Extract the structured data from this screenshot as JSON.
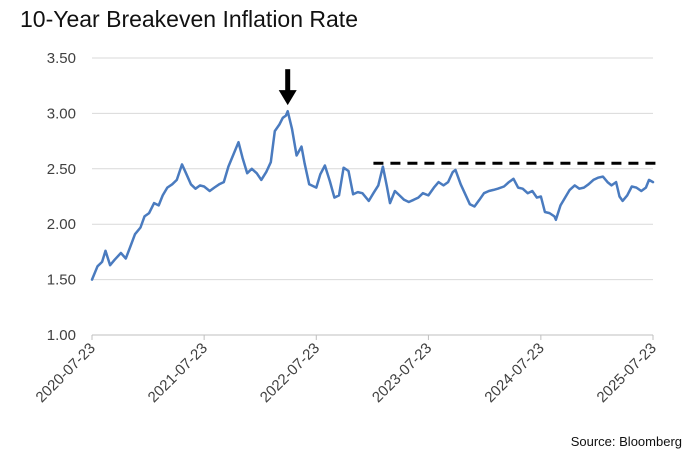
{
  "chart_data": {
    "type": "line",
    "title": "10-Year Breakeven Inflation Rate",
    "source": "Source: Bloomberg",
    "xlabel": "",
    "ylabel": "",
    "ylim": [
      1.0,
      3.5
    ],
    "y_ticks": [
      "1.00",
      "1.50",
      "2.00",
      "2.50",
      "3.00",
      "3.50"
    ],
    "x_range": [
      "2020-07-23",
      "2025-07-23"
    ],
    "x_ticks": [
      "2020-07-23",
      "2021-07-23",
      "2022-07-23",
      "2023-07-23",
      "2024-07-23",
      "2025-07-23"
    ],
    "grid": "horizontal",
    "legend": "none",
    "series": [
      {
        "color": "#4a7bbf",
        "points": [
          [
            "2020-07-23",
            1.5
          ],
          [
            "2020-08-10",
            1.62
          ],
          [
            "2020-08-25",
            1.66
          ],
          [
            "2020-09-05",
            1.76
          ],
          [
            "2020-09-20",
            1.63
          ],
          [
            "2020-10-05",
            1.68
          ],
          [
            "2020-10-25",
            1.74
          ],
          [
            "2020-11-10",
            1.69
          ],
          [
            "2020-11-25",
            1.8
          ],
          [
            "2020-12-10",
            1.91
          ],
          [
            "2020-12-28",
            1.97
          ],
          [
            "2021-01-10",
            2.07
          ],
          [
            "2021-01-25",
            2.1
          ],
          [
            "2021-02-10",
            2.19
          ],
          [
            "2021-02-25",
            2.17
          ],
          [
            "2021-03-10",
            2.26
          ],
          [
            "2021-03-25",
            2.33
          ],
          [
            "2021-04-10",
            2.36
          ],
          [
            "2021-04-25",
            2.4
          ],
          [
            "2021-05-12",
            2.54
          ],
          [
            "2021-05-25",
            2.46
          ],
          [
            "2021-06-10",
            2.36
          ],
          [
            "2021-06-25",
            2.32
          ],
          [
            "2021-07-10",
            2.35
          ],
          [
            "2021-07-23",
            2.34
          ],
          [
            "2021-08-10",
            2.3
          ],
          [
            "2021-08-25",
            2.33
          ],
          [
            "2021-09-10",
            2.36
          ],
          [
            "2021-09-25",
            2.38
          ],
          [
            "2021-10-10",
            2.52
          ],
          [
            "2021-10-25",
            2.62
          ],
          [
            "2021-11-12",
            2.74
          ],
          [
            "2021-11-25",
            2.6
          ],
          [
            "2021-12-10",
            2.46
          ],
          [
            "2021-12-25",
            2.5
          ],
          [
            "2022-01-10",
            2.46
          ],
          [
            "2022-01-25",
            2.4
          ],
          [
            "2022-02-10",
            2.47
          ],
          [
            "2022-02-25",
            2.56
          ],
          [
            "2022-03-10",
            2.84
          ],
          [
            "2022-03-25",
            2.9
          ],
          [
            "2022-04-05",
            2.96
          ],
          [
            "2022-04-15",
            2.98
          ],
          [
            "2022-04-21",
            3.02
          ],
          [
            "2022-05-05",
            2.86
          ],
          [
            "2022-05-20",
            2.62
          ],
          [
            "2022-06-05",
            2.7
          ],
          [
            "2022-06-15",
            2.55
          ],
          [
            "2022-06-30",
            2.36
          ],
          [
            "2022-07-23",
            2.33
          ],
          [
            "2022-08-05",
            2.45
          ],
          [
            "2022-08-20",
            2.53
          ],
          [
            "2022-09-05",
            2.39
          ],
          [
            "2022-09-20",
            2.24
          ],
          [
            "2022-10-05",
            2.26
          ],
          [
            "2022-10-20",
            2.51
          ],
          [
            "2022-11-05",
            2.48
          ],
          [
            "2022-11-20",
            2.27
          ],
          [
            "2022-12-05",
            2.29
          ],
          [
            "2022-12-20",
            2.28
          ],
          [
            "2023-01-10",
            2.21
          ],
          [
            "2023-01-25",
            2.28
          ],
          [
            "2023-02-10",
            2.35
          ],
          [
            "2023-02-25",
            2.52
          ],
          [
            "2023-03-10",
            2.34
          ],
          [
            "2023-03-20",
            2.19
          ],
          [
            "2023-04-05",
            2.3
          ],
          [
            "2023-04-20",
            2.26
          ],
          [
            "2023-05-05",
            2.22
          ],
          [
            "2023-05-20",
            2.2
          ],
          [
            "2023-06-05",
            2.22
          ],
          [
            "2023-06-20",
            2.24
          ],
          [
            "2023-07-05",
            2.28
          ],
          [
            "2023-07-23",
            2.26
          ],
          [
            "2023-08-10",
            2.33
          ],
          [
            "2023-08-25",
            2.38
          ],
          [
            "2023-09-10",
            2.35
          ],
          [
            "2023-09-25",
            2.38
          ],
          [
            "2023-10-10",
            2.47
          ],
          [
            "2023-10-19",
            2.49
          ],
          [
            "2023-11-05",
            2.36
          ],
          [
            "2023-11-20",
            2.27
          ],
          [
            "2023-12-05",
            2.18
          ],
          [
            "2023-12-20",
            2.16
          ],
          [
            "2024-01-05",
            2.22
          ],
          [
            "2024-01-20",
            2.28
          ],
          [
            "2024-02-05",
            2.3
          ],
          [
            "2024-02-20",
            2.31
          ],
          [
            "2024-03-05",
            2.32
          ],
          [
            "2024-03-25",
            2.34
          ],
          [
            "2024-04-10",
            2.38
          ],
          [
            "2024-04-25",
            2.41
          ],
          [
            "2024-05-10",
            2.33
          ],
          [
            "2024-05-25",
            2.32
          ],
          [
            "2024-06-10",
            2.28
          ],
          [
            "2024-06-25",
            2.3
          ],
          [
            "2024-07-10",
            2.24
          ],
          [
            "2024-07-23",
            2.25
          ],
          [
            "2024-08-05",
            2.11
          ],
          [
            "2024-08-20",
            2.1
          ],
          [
            "2024-09-05",
            2.07
          ],
          [
            "2024-09-10",
            2.04
          ],
          [
            "2024-09-25",
            2.17
          ],
          [
            "2024-10-10",
            2.24
          ],
          [
            "2024-10-25",
            2.31
          ],
          [
            "2024-11-10",
            2.35
          ],
          [
            "2024-11-25",
            2.32
          ],
          [
            "2024-12-10",
            2.33
          ],
          [
            "2024-12-25",
            2.36
          ],
          [
            "2025-01-10",
            2.4
          ],
          [
            "2025-01-25",
            2.42
          ],
          [
            "2025-02-10",
            2.43
          ],
          [
            "2025-02-25",
            2.38
          ],
          [
            "2025-03-10",
            2.35
          ],
          [
            "2025-03-25",
            2.38
          ],
          [
            "2025-04-05",
            2.25
          ],
          [
            "2025-04-15",
            2.21
          ],
          [
            "2025-04-30",
            2.26
          ],
          [
            "2025-05-15",
            2.34
          ],
          [
            "2025-05-30",
            2.33
          ],
          [
            "2025-06-15",
            2.3
          ],
          [
            "2025-06-30",
            2.33
          ],
          [
            "2025-07-10",
            2.4
          ],
          [
            "2025-07-23",
            2.38
          ]
        ]
      }
    ],
    "annotations": {
      "arrow_at": {
        "x": "2022-04-21",
        "y": 3.02
      },
      "dashed_line": {
        "y": 2.55,
        "x_start": "2023-01-25",
        "x_end": "2025-07-23"
      }
    }
  }
}
